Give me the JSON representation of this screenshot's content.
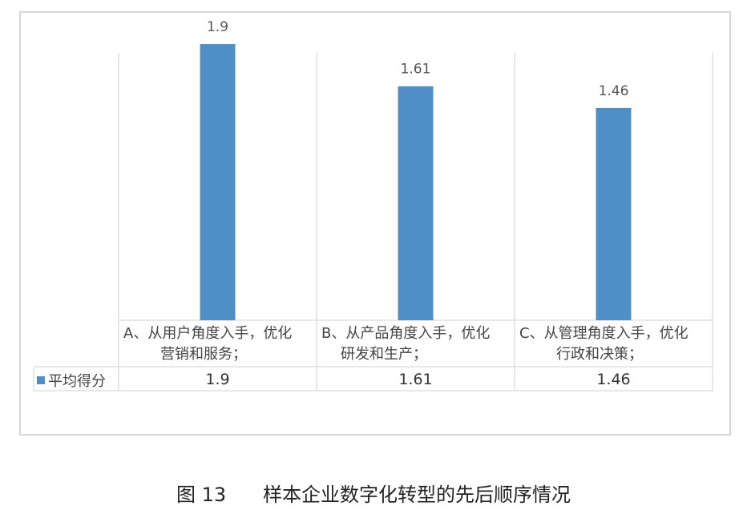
{
  "chart_data": {
    "type": "bar",
    "categories": [
      "A、从用户角度入手，优化营销和服务；",
      "B、从产品角度入手，优化研发和生产；",
      "C、从管理角度入手，优化行政和决策；"
    ],
    "series": [
      {
        "name": "平均得分",
        "values": [
          1.9,
          1.61,
          1.46
        ]
      }
    ],
    "data_labels": [
      "1.9",
      "1.61",
      "1.46"
    ],
    "table_values": [
      "1.9",
      "1.61",
      "1.46"
    ],
    "ylim": [
      0,
      2.06
    ],
    "grid": "vertical category separators",
    "legend": "data-table-left",
    "color": "#4f8fc6"
  },
  "category_lines": [
    [
      "A、从用户角度入手，优化",
      "营销和服务；"
    ],
    [
      "B、从产品角度入手，优化",
      "研发和生产；"
    ],
    [
      "C、从管理角度入手，优化",
      "行政和决策；"
    ]
  ],
  "legend_label": "平均得分",
  "caption": {
    "figure": "图 13",
    "text": "样本企业数字化转型的先后顺序情况"
  }
}
